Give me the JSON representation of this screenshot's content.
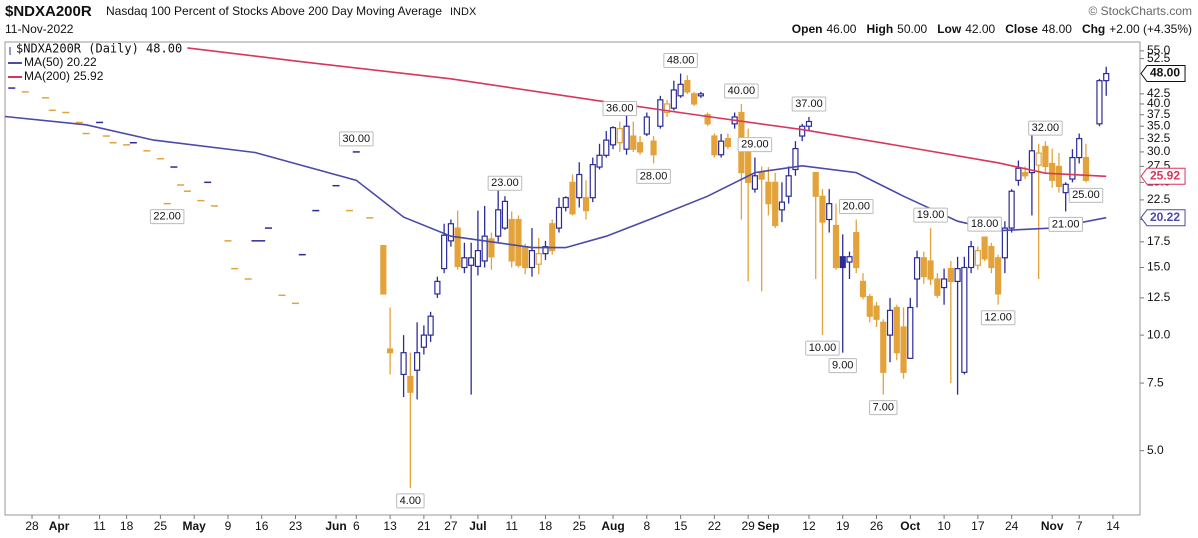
{
  "header": {
    "symbol": "$NDXA200R",
    "name": "Nasdaq 100 Percent of Stocks Above 200 Day Moving Average",
    "exchange": "INDX",
    "date": "11-Nov-2022",
    "source": "© StockCharts.com",
    "quote": [
      {
        "label": "Open",
        "value": "46.00"
      },
      {
        "label": "High",
        "value": "50.00"
      },
      {
        "label": "Low",
        "value": "42.00"
      },
      {
        "label": "Close",
        "value": "48.00"
      },
      {
        "label": "Chg",
        "value": "+2.00 (+4.35%)"
      }
    ]
  },
  "chart_data": {
    "type": "candlestick",
    "yscale": "log",
    "ylim": [
      3.4,
      58
    ],
    "xlim": [
      -4,
      164
    ],
    "grid": false,
    "yticks": [
      {
        "value": 5,
        "label": "5.0"
      },
      {
        "value": 7.5,
        "label": "7.5"
      },
      {
        "value": 10,
        "label": "10.0"
      },
      {
        "value": 12.5,
        "label": "12.5"
      },
      {
        "value": 15,
        "label": "15.0"
      },
      {
        "value": 17.5,
        "label": "17.5"
      },
      {
        "value": 20,
        "label": "20.0"
      },
      {
        "value": 22.5,
        "label": "22.5"
      },
      {
        "value": 25,
        "label": "25.0"
      },
      {
        "value": 27.5,
        "label": "27.5"
      },
      {
        "value": 30,
        "label": "30.0"
      },
      {
        "value": 32.5,
        "label": "32.5"
      },
      {
        "value": 35,
        "label": "35.0"
      },
      {
        "value": 37.5,
        "label": "37.5"
      },
      {
        "value": 40,
        "label": "40.0"
      },
      {
        "value": 42.5,
        "label": "42.5"
      },
      {
        "value": 52.5,
        "label": "52.5"
      },
      {
        "value": 55,
        "label": "55.0"
      }
    ],
    "xticks": [
      {
        "value": 0,
        "label": "28"
      },
      {
        "value": 4,
        "label": "Apr"
      },
      {
        "value": 10,
        "label": "11"
      },
      {
        "value": 14,
        "label": "18"
      },
      {
        "value": 19,
        "label": "25"
      },
      {
        "value": 24,
        "label": "May"
      },
      {
        "value": 29,
        "label": "9"
      },
      {
        "value": 34,
        "label": "16"
      },
      {
        "value": 39,
        "label": "23"
      },
      {
        "value": 45,
        "label": "Jun"
      },
      {
        "value": 48,
        "label": "6"
      },
      {
        "value": 53,
        "label": "13"
      },
      {
        "value": 58,
        "label": "21"
      },
      {
        "value": 62,
        "label": "27"
      },
      {
        "value": 66,
        "label": "Jul"
      },
      {
        "value": 71,
        "label": "11"
      },
      {
        "value": 76,
        "label": "18"
      },
      {
        "value": 81,
        "label": "25"
      },
      {
        "value": 86,
        "label": "Aug"
      },
      {
        "value": 91,
        "label": "8"
      },
      {
        "value": 96,
        "label": "15"
      },
      {
        "value": 101,
        "label": "22"
      },
      {
        "value": 106,
        "label": "29"
      },
      {
        "value": 109,
        "label": "Sep"
      },
      {
        "value": 115,
        "label": "12"
      },
      {
        "value": 120,
        "label": "19"
      },
      {
        "value": 125,
        "label": "26"
      },
      {
        "value": 130,
        "label": "Oct"
      },
      {
        "value": 135,
        "label": "10"
      },
      {
        "value": 140,
        "label": "17"
      },
      {
        "value": 145,
        "label": "24"
      },
      {
        "value": 151,
        "label": "Nov"
      },
      {
        "value": 155,
        "label": "7"
      },
      {
        "value": 160,
        "label": "14"
      }
    ],
    "series": [
      {
        "type": "candlestick",
        "name": "$NDXA200R (Daily) 48.00",
        "up_color": "#2b2b9a",
        "down_color": "#e3a33a",
        "last_label": "48.00",
        "x": [
          -3,
          -1,
          2,
          3,
          5,
          7,
          8,
          10,
          11,
          12,
          14,
          15,
          17,
          19,
          20,
          21,
          22,
          23,
          25,
          26,
          27,
          29,
          30,
          32,
          33,
          34,
          35,
          37,
          39,
          40,
          42,
          45,
          47,
          48,
          50,
          52,
          53,
          55,
          56,
          57,
          58,
          59,
          60,
          61,
          62,
          63,
          64,
          65,
          66,
          67,
          68,
          69,
          70,
          71,
          72,
          73,
          74,
          75,
          76,
          77,
          78,
          79,
          80,
          81,
          82,
          83,
          84,
          85,
          86,
          87,
          88,
          89,
          90,
          91,
          92,
          93,
          94,
          95,
          96,
          97,
          98,
          99,
          100,
          101,
          102,
          103,
          104,
          105,
          106,
          107,
          108,
          109,
          110,
          111,
          112,
          113,
          114,
          115,
          116,
          117,
          118,
          119,
          120,
          121,
          122,
          123,
          124,
          125,
          126,
          127,
          128,
          129,
          130,
          131,
          132,
          133,
          134,
          135,
          136,
          137,
          138,
          139,
          140,
          141,
          142,
          143,
          144,
          145,
          146,
          147,
          148,
          149,
          150,
          151,
          152,
          153,
          154,
          155,
          156,
          158,
          159
        ],
        "open": [
          44,
          43,
          41.5,
          38.5,
          38,
          35.8,
          33.5,
          35.8,
          33,
          31.7,
          31.3,
          31.7,
          30.2,
          28.8,
          22,
          27.4,
          24.6,
          23.7,
          22.4,
          25,
          21.7,
          17.6,
          14.9,
          14,
          17.6,
          17.6,
          19,
          12.7,
          12.1,
          16.2,
          21.1,
          24.5,
          21.1,
          30,
          20.2,
          17.1,
          9.2,
          7.9,
          7.8,
          8.1,
          9.3,
          10,
          12.8,
          14.9,
          17.6,
          19,
          15,
          15.2,
          15.1,
          15.6,
          17.8,
          18.1,
          19,
          20,
          20,
          17,
          15,
          15.3,
          16.3,
          19.5,
          19,
          21.5,
          25,
          22.8,
          22.8,
          22.8,
          27.4,
          29.4,
          31.3,
          31.7,
          30.5,
          33,
          31.7,
          33.4,
          32,
          35,
          38,
          39,
          42,
          46,
          42.5,
          42,
          37.5,
          33,
          29.5,
          32.5,
          35.5,
          38,
          31,
          24,
          26.5,
          25,
          25,
          21.2,
          23,
          27,
          33,
          35,
          26.5,
          23,
          20,
          19.3,
          16,
          15.5,
          18.5,
          13.8,
          12.6,
          11.9,
          10.8,
          10,
          11.8,
          10.5,
          8.7,
          14,
          15.9,
          15.6,
          14,
          13.3,
          14.9,
          13.8,
          8,
          15,
          15.2,
          18,
          17,
          15.9,
          15.9,
          19,
          25.3,
          26.5,
          26.5,
          27.7,
          31,
          28,
          27.5,
          23.5,
          25.5,
          29,
          29,
          35.5,
          46
        ],
        "high": [
          44,
          43,
          41.5,
          38.5,
          38,
          35.8,
          33.5,
          35.8,
          33,
          31.7,
          31.3,
          31.7,
          30.2,
          28.8,
          22,
          27.4,
          24.6,
          23.7,
          22.4,
          25,
          21.7,
          17.6,
          14.9,
          14,
          17.6,
          17.6,
          19,
          12.7,
          12.1,
          16.2,
          21.1,
          24.5,
          21.1,
          30,
          20.2,
          17.1,
          11.8,
          10,
          9,
          10.8,
          10.6,
          11.5,
          14.2,
          19.5,
          20,
          21.1,
          17.4,
          17.4,
          21.1,
          21.7,
          18.5,
          24,
          23,
          21,
          20.5,
          17.3,
          19,
          17.9,
          17.6,
          20,
          22.8,
          23,
          26.2,
          28.2,
          25.3,
          29,
          31.5,
          34,
          35,
          36,
          38,
          36,
          33,
          38,
          33,
          42,
          41,
          46,
          48,
          47.5,
          43,
          43,
          38,
          33.5,
          33.4,
          33.5,
          38,
          40,
          34.5,
          29,
          27.5,
          27.4,
          26.5,
          25,
          27.5,
          32,
          35.5,
          37,
          26.5,
          24,
          24,
          22,
          18.3,
          16.5,
          20,
          14.5,
          12.8,
          12.2,
          11,
          12.5,
          12,
          11.8,
          12.5,
          16.6,
          16.5,
          19,
          14.5,
          14.9,
          15.6,
          16,
          16,
          17.6,
          17,
          18,
          17.4,
          16.2,
          19.8,
          24,
          28.5,
          27.5,
          34,
          31.5,
          32,
          30.6,
          29.8,
          25,
          30.5,
          33.5,
          31.5,
          46.5,
          50
        ],
        "low": [
          44,
          43,
          41.5,
          38.5,
          38,
          35.8,
          33.5,
          35.8,
          33,
          31.7,
          31.3,
          31.7,
          30.2,
          28.8,
          22,
          27.4,
          24.6,
          23.7,
          22.4,
          25,
          21.7,
          17.6,
          14.9,
          14,
          17.6,
          17.6,
          19,
          12.7,
          12.1,
          16.2,
          21.1,
          24.5,
          21.1,
          30,
          20.2,
          12.8,
          7.9,
          6.9,
          4,
          6.8,
          8.9,
          9.6,
          12.5,
          14.5,
          17,
          14.8,
          14.5,
          7,
          14.3,
          15,
          14.8,
          17.5,
          18.8,
          15,
          15,
          14.4,
          14.2,
          14.4,
          15.7,
          16.2,
          18.5,
          21,
          20.5,
          21.5,
          20,
          22.2,
          27,
          29,
          30.5,
          30,
          29.5,
          30,
          29.5,
          33,
          28,
          34.5,
          37,
          38.5,
          41.5,
          42.5,
          39.5,
          41.5,
          35,
          29,
          29,
          30.5,
          34.5,
          20,
          13.8,
          23.5,
          13,
          20.5,
          19,
          19.7,
          22,
          26,
          32,
          34,
          14,
          10,
          18.5,
          14.8,
          9,
          14,
          14.5,
          12.4,
          10.8,
          10.5,
          7,
          8.5,
          8.6,
          7.7,
          8.7,
          11.8,
          13.6,
          13.5,
          12.5,
          12,
          7.5,
          7,
          7.9,
          14.5,
          14.8,
          15.6,
          14.5,
          12,
          14.5,
          18.5,
          24.5,
          25.5,
          20.5,
          14,
          26.5,
          24.2,
          23.5,
          21,
          25,
          28,
          25,
          35,
          42
        ],
        "close": [
          44,
          43,
          41.5,
          38.5,
          38,
          35.8,
          33.5,
          35.8,
          33,
          31.7,
          31.3,
          31.7,
          30.2,
          28.8,
          22,
          27.4,
          24.6,
          23.7,
          22.4,
          25,
          21.7,
          17.6,
          14.9,
          14,
          17.6,
          17.6,
          19,
          12.7,
          12.1,
          16.2,
          21.1,
          24.5,
          21.1,
          30,
          20.2,
          12.8,
          9,
          9,
          7.1,
          9,
          10,
          11.2,
          13.8,
          18.2,
          19.5,
          15.1,
          15.9,
          15.9,
          16.6,
          18.1,
          16,
          21.2,
          22.3,
          15.6,
          15.2,
          15,
          16.6,
          16.3,
          17,
          16.6,
          21.5,
          22.8,
          20.7,
          26.2,
          21.1,
          27.8,
          29.4,
          32.2,
          34.7,
          34.5,
          35,
          30.5,
          30,
          37,
          29.5,
          41,
          40,
          43.5,
          45,
          43,
          40,
          42.5,
          35.5,
          29.5,
          32,
          31,
          37,
          26.5,
          25,
          26,
          25.5,
          22,
          19.3,
          22.2,
          26,
          30.6,
          35,
          36,
          23,
          19.7,
          22,
          15,
          15,
          16,
          15,
          12.6,
          11.2,
          11,
          8,
          11.6,
          9,
          8,
          11.8,
          15.9,
          14.2,
          14,
          12.7,
          14,
          13.8,
          14.9,
          15,
          17,
          16.6,
          15.8,
          15,
          12.8,
          19,
          23.7,
          27.2,
          26,
          30.2,
          29.8,
          27.5,
          25.3,
          24.4,
          24.7,
          29,
          32.5,
          25.3,
          46,
          48
        ]
      },
      {
        "type": "line",
        "name": "MA(50) 20.22",
        "color": "#4a4aa8",
        "last_label": "20.22",
        "x": [
          -4,
          8,
          18,
          33,
          48,
          55,
          62,
          74,
          79,
          85,
          92,
          100,
          107,
          114,
          122,
          129,
          137,
          143,
          151,
          159
        ],
        "values": [
          37.1,
          35.3,
          32.2,
          29.9,
          25.3,
          20.3,
          18.1,
          16.9,
          16.9,
          18.1,
          20.2,
          23,
          26.5,
          27.6,
          26.5,
          23,
          19.8,
          18.7,
          19,
          20.22
        ]
      },
      {
        "type": "line",
        "name": "MA(200) 25.92",
        "color": "#d8365a",
        "last_label": "25.92",
        "x": [
          23,
          40,
          62,
          85,
          100,
          114,
          129,
          143,
          150,
          159
        ],
        "values": [
          56,
          51.5,
          46.5,
          40.5,
          37.1,
          34.3,
          31,
          28.1,
          26.4,
          25.92
        ]
      }
    ],
    "annotations": [
      {
        "label": "22.00",
        "x": 20,
        "value": 22,
        "position": "below"
      },
      {
        "label": "30.00",
        "x": 48,
        "value": 30,
        "position": "above"
      },
      {
        "label": "4.00",
        "x": 56,
        "value": 4,
        "position": "below"
      },
      {
        "label": "23.00",
        "x": 70,
        "value": 23,
        "position": "above"
      },
      {
        "label": "36.00",
        "x": 87,
        "value": 36,
        "position": "above"
      },
      {
        "label": "28.00",
        "x": 92,
        "value": 28,
        "position": "below"
      },
      {
        "label": "48.00",
        "x": 96,
        "value": 48,
        "position": "above"
      },
      {
        "label": "40.00",
        "x": 105,
        "value": 40,
        "position": "above"
      },
      {
        "label": "29.00",
        "x": 107,
        "value": 29,
        "position": "above"
      },
      {
        "label": "37.00",
        "x": 115,
        "value": 37,
        "position": "above"
      },
      {
        "label": "10.00",
        "x": 117,
        "value": 10,
        "position": "below"
      },
      {
        "label": "9.00",
        "x": 120,
        "value": 9,
        "position": "below"
      },
      {
        "label": "20.00",
        "x": 122,
        "value": 20,
        "position": "above"
      },
      {
        "label": "7.00",
        "x": 126,
        "value": 7,
        "position": "below"
      },
      {
        "label": "19.00",
        "x": 133,
        "value": 19,
        "position": "above"
      },
      {
        "label": "18.00",
        "x": 141,
        "value": 18,
        "position": "above"
      },
      {
        "label": "12.00",
        "x": 143,
        "value": 12,
        "position": "below"
      },
      {
        "label": "32.00",
        "x": 150,
        "value": 32,
        "position": "above"
      },
      {
        "label": "21.00",
        "x": 153,
        "value": 21,
        "position": "below"
      },
      {
        "label": "25.00",
        "x": 156,
        "value": 25,
        "position": "below"
      }
    ]
  }
}
